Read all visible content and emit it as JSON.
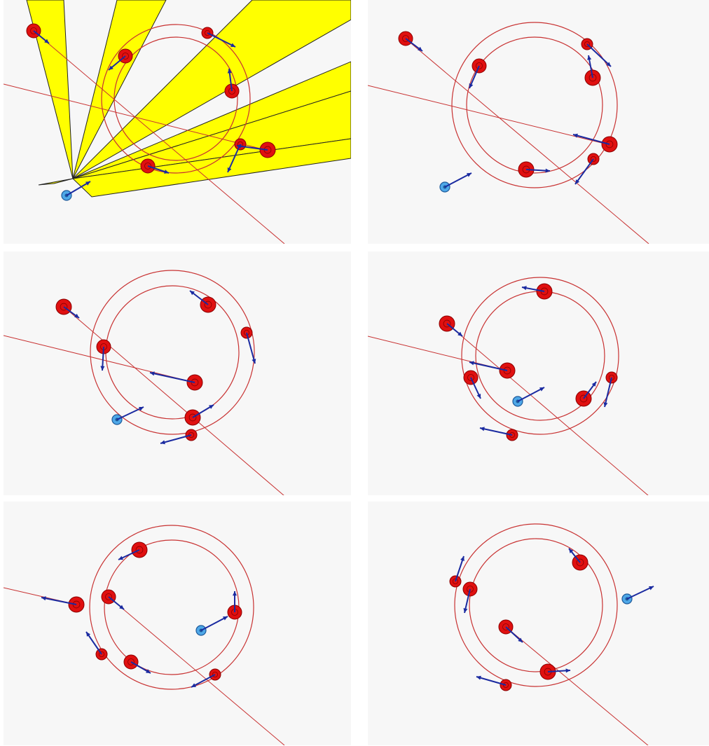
{
  "colors": {
    "background": "#f7f7f7",
    "track": "#c83232",
    "path": "#c83232",
    "agent": "#e01010",
    "agent_outline": "#8a0000",
    "robot": "#4fa8e8",
    "robot_outline": "#1d5a9a",
    "velocity": "#1a2aa0",
    "sensor_cone": "#ffff00",
    "sensor_outline": "#222222"
  },
  "icons": {
    "agent": "red-disc-icon",
    "robot": "blue-disc-icon",
    "velocity": "arrow-icon",
    "sensor": "cone-icon"
  },
  "panels": [
    {
      "name": "frame-1",
      "track": {
        "cx": 246,
        "cy": 141,
        "r_outer": 106,
        "r_inner": 88
      },
      "paths": [
        [
          [
            0,
            120
          ],
          [
            366,
            212
          ]
        ],
        [
          [
            38,
            40
          ],
          [
            401,
            348
          ]
        ]
      ],
      "robot": {
        "x": 90,
        "y": 279,
        "vx": 34,
        "vy": -20
      },
      "cones": [
        [
          [
            99,
            255
          ],
          [
            33,
            0
          ],
          [
            86,
            0
          ]
        ],
        [
          [
            99,
            255
          ],
          [
            162,
            0
          ],
          [
            232,
            0
          ]
        ],
        [
          [
            99,
            255
          ],
          [
            355,
            0
          ],
          [
            496,
            0
          ],
          [
            496,
            28
          ]
        ],
        [
          [
            99,
            255
          ],
          [
            496,
            88
          ],
          [
            496,
            130
          ]
        ],
        [
          [
            99,
            255
          ],
          [
            496,
            130
          ],
          [
            496,
            198
          ]
        ],
        [
          [
            99,
            255
          ],
          [
            496,
            198
          ],
          [
            496,
            226
          ],
          [
            126,
            281
          ]
        ],
        [
          [
            99,
            255
          ],
          [
            50,
            264
          ],
          [
            72,
            262
          ]
        ]
      ],
      "agents": [
        {
          "x": 43,
          "y": 44,
          "r": 10,
          "vx": 22,
          "vy": 18
        },
        {
          "x": 174,
          "y": 80,
          "r": 10,
          "vx": -24,
          "vy": 20
        },
        {
          "x": 291,
          "y": 47,
          "r": 8,
          "vx": 40,
          "vy": 20
        },
        {
          "x": 326,
          "y": 130,
          "r": 10,
          "vx": -4,
          "vy": -32
        },
        {
          "x": 338,
          "y": 206,
          "r": 8,
          "vx": -18,
          "vy": 40
        },
        {
          "x": 377,
          "y": 214,
          "r": 11,
          "vx": -44,
          "vy": -6
        },
        {
          "x": 206,
          "y": 237,
          "r": 10,
          "vx": 30,
          "vy": 10
        }
      ]
    },
    {
      "name": "frame-2",
      "track": {
        "cx": 238,
        "cy": 150,
        "r_outer": 118,
        "r_inner": 97
      },
      "paths": [
        [
          [
            0,
            122
          ],
          [
            350,
            208
          ]
        ],
        [
          [
            50,
            52
          ],
          [
            401,
            348
          ]
        ]
      ],
      "robot": {
        "x": 110,
        "y": 267,
        "vx": 38,
        "vy": -20
      },
      "cones": [],
      "agents": [
        {
          "x": 54,
          "y": 55,
          "r": 10,
          "vx": 24,
          "vy": 18
        },
        {
          "x": 159,
          "y": 94,
          "r": 10,
          "vx": -14,
          "vy": 32
        },
        {
          "x": 313,
          "y": 63,
          "r": 8,
          "vx": 34,
          "vy": 32
        },
        {
          "x": 321,
          "y": 111,
          "r": 11,
          "vx": -6,
          "vy": -32
        },
        {
          "x": 345,
          "y": 206,
          "r": 11,
          "vx": -52,
          "vy": -14
        },
        {
          "x": 322,
          "y": 227,
          "r": 8,
          "vx": -26,
          "vy": 36
        },
        {
          "x": 226,
          "y": 242,
          "r": 11,
          "vx": 34,
          "vy": 2
        }
      ]
    },
    {
      "name": "frame-3",
      "track": {
        "cx": 241,
        "cy": 144,
        "r_outer": 117,
        "r_inner": 95
      },
      "paths": [
        [
          [
            0,
            120
          ],
          [
            273,
            187
          ]
        ],
        [
          [
            86,
            79
          ],
          [
            401,
            349
          ]
        ]
      ],
      "robot": {
        "x": 162,
        "y": 240,
        "vx": 38,
        "vy": -18
      },
      "cones": [],
      "agents": [
        {
          "x": 86,
          "y": 79,
          "r": 11,
          "vx": 22,
          "vy": 16
        },
        {
          "x": 143,
          "y": 136,
          "r": 10,
          "vx": -2,
          "vy": 34
        },
        {
          "x": 292,
          "y": 76,
          "r": 11,
          "vx": -26,
          "vy": -20
        },
        {
          "x": 347,
          "y": 116,
          "r": 8,
          "vx": 12,
          "vy": 44
        },
        {
          "x": 273,
          "y": 187,
          "r": 11,
          "vx": -64,
          "vy": -14
        },
        {
          "x": 270,
          "y": 237,
          "r": 11,
          "vx": 30,
          "vy": -18
        },
        {
          "x": 268,
          "y": 262,
          "r": 8,
          "vx": -44,
          "vy": 12
        }
      ]
    },
    {
      "name": "frame-4",
      "track": {
        "cx": 246,
        "cy": 149,
        "r_outer": 112,
        "r_inner": 92
      },
      "paths": [
        [
          [
            0,
            121
          ],
          [
            199,
            170
          ]
        ],
        [
          [
            113,
            103
          ],
          [
            401,
            349
          ]
        ]
      ],
      "robot": {
        "x": 214,
        "y": 214,
        "vx": 38,
        "vy": -20
      },
      "cones": [],
      "agents": [
        {
          "x": 113,
          "y": 103,
          "r": 11,
          "vx": 22,
          "vy": 18
        },
        {
          "x": 252,
          "y": 57,
          "r": 11,
          "vx": -32,
          "vy": -6
        },
        {
          "x": 199,
          "y": 170,
          "r": 11,
          "vx": -54,
          "vy": -12
        },
        {
          "x": 147,
          "y": 180,
          "r": 10,
          "vx": 14,
          "vy": 30
        },
        {
          "x": 348,
          "y": 180,
          "r": 8,
          "vx": -10,
          "vy": 42
        },
        {
          "x": 308,
          "y": 210,
          "r": 11,
          "vx": 18,
          "vy": -24
        },
        {
          "x": 206,
          "y": 262,
          "r": 8,
          "vx": -46,
          "vy": -10
        }
      ]
    },
    {
      "name": "frame-5",
      "track": {
        "cx": 240,
        "cy": 151,
        "r_outer": 117,
        "r_inner": 96
      },
      "paths": [
        [
          [
            0,
            123
          ],
          [
            104,
            147
          ]
        ],
        [
          [
            150,
            136
          ],
          [
            401,
            348
          ]
        ]
      ],
      "robot": {
        "x": 282,
        "y": 184,
        "vx": 38,
        "vy": -20
      },
      "cones": [],
      "agents": [
        {
          "x": 104,
          "y": 147,
          "r": 11,
          "vx": -50,
          "vy": -10
        },
        {
          "x": 194,
          "y": 69,
          "r": 11,
          "vx": -30,
          "vy": 14
        },
        {
          "x": 150,
          "y": 136,
          "r": 10,
          "vx": 22,
          "vy": 18
        },
        {
          "x": 330,
          "y": 158,
          "r": 10,
          "vx": 0,
          "vy": -30
        },
        {
          "x": 140,
          "y": 218,
          "r": 8,
          "vx": -22,
          "vy": -32
        },
        {
          "x": 182,
          "y": 229,
          "r": 10,
          "vx": 28,
          "vy": 16
        },
        {
          "x": 302,
          "y": 247,
          "r": 8,
          "vx": -34,
          "vy": 18
        }
      ]
    },
    {
      "name": "frame-6",
      "track": {
        "cx": 240,
        "cy": 148,
        "r_outer": 116,
        "r_inner": 95
      },
      "paths": [
        [
          [
            197,
            179
          ],
          [
            401,
            349
          ]
        ]
      ],
      "robot": {
        "x": 370,
        "y": 139,
        "vx": 38,
        "vy": -18
      },
      "cones": [],
      "agents": [
        {
          "x": 303,
          "y": 87,
          "r": 11,
          "vx": -16,
          "vy": -20
        },
        {
          "x": 125,
          "y": 114,
          "r": 8,
          "vx": 12,
          "vy": -36
        },
        {
          "x": 146,
          "y": 125,
          "r": 10,
          "vx": -8,
          "vy": 34
        },
        {
          "x": 197,
          "y": 179,
          "r": 10,
          "vx": 24,
          "vy": 22
        },
        {
          "x": 257,
          "y": 243,
          "r": 11,
          "vx": 32,
          "vy": -2
        },
        {
          "x": 197,
          "y": 262,
          "r": 8,
          "vx": -42,
          "vy": -12
        }
      ]
    }
  ]
}
